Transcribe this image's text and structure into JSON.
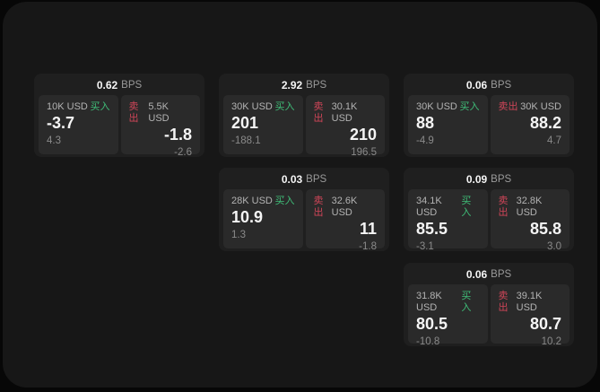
{
  "labels": {
    "buy": "买入",
    "sell": "卖出",
    "bps": "BPS"
  },
  "colors": {
    "buy_green": "#3fbe78",
    "sell_red": "#cf4558",
    "value_white": "#f5f5f5",
    "label_gray": "#b3b3b3",
    "sub_gray": "#8a8a8a",
    "bps_gray": "#9a9a9a",
    "outer_bg": "#070707",
    "window_bg": "#171717",
    "card_bg": "#1f1f1f",
    "panel_bg": "#2a2a2a"
  },
  "cards": [
    {
      "bps": "0.62",
      "row": 0,
      "col": 0,
      "buy": {
        "size": "10K USD",
        "value": "-3.7",
        "sub": "4.3"
      },
      "sell": {
        "size": "5.5K USD",
        "value": "-1.8",
        "sub": "-2.6"
      }
    },
    {
      "bps": "2.92",
      "row": 0,
      "col": 1,
      "buy": {
        "size": "30K USD",
        "value": "201",
        "sub": "-188.1"
      },
      "sell": {
        "size": "30.1K USD",
        "value": "210",
        "sub": "196.5"
      }
    },
    {
      "bps": "0.06",
      "row": 0,
      "col": 2,
      "buy": {
        "size": "30K USD",
        "value": "88",
        "sub": "-4.9"
      },
      "sell": {
        "size": "30K USD",
        "value": "88.2",
        "sub": "4.7"
      }
    },
    {
      "bps": "0.03",
      "row": 1,
      "col": 1,
      "buy": {
        "size": "28K USD",
        "value": "10.9",
        "sub": "1.3"
      },
      "sell": {
        "size": "32.6K USD",
        "value": "11",
        "sub": "-1.8"
      }
    },
    {
      "bps": "0.09",
      "row": 1,
      "col": 2,
      "buy": {
        "size": "34.1K USD",
        "value": "85.5",
        "sub": "-3.1"
      },
      "sell": {
        "size": "32.8K USD",
        "value": "85.8",
        "sub": "3.0"
      }
    },
    {
      "bps": "0.06",
      "row": 2,
      "col": 2,
      "buy": {
        "size": "31.8K USD",
        "value": "80.5",
        "sub": "-10.8"
      },
      "sell": {
        "size": "39.1K USD",
        "value": "80.7",
        "sub": "10.2"
      }
    }
  ]
}
